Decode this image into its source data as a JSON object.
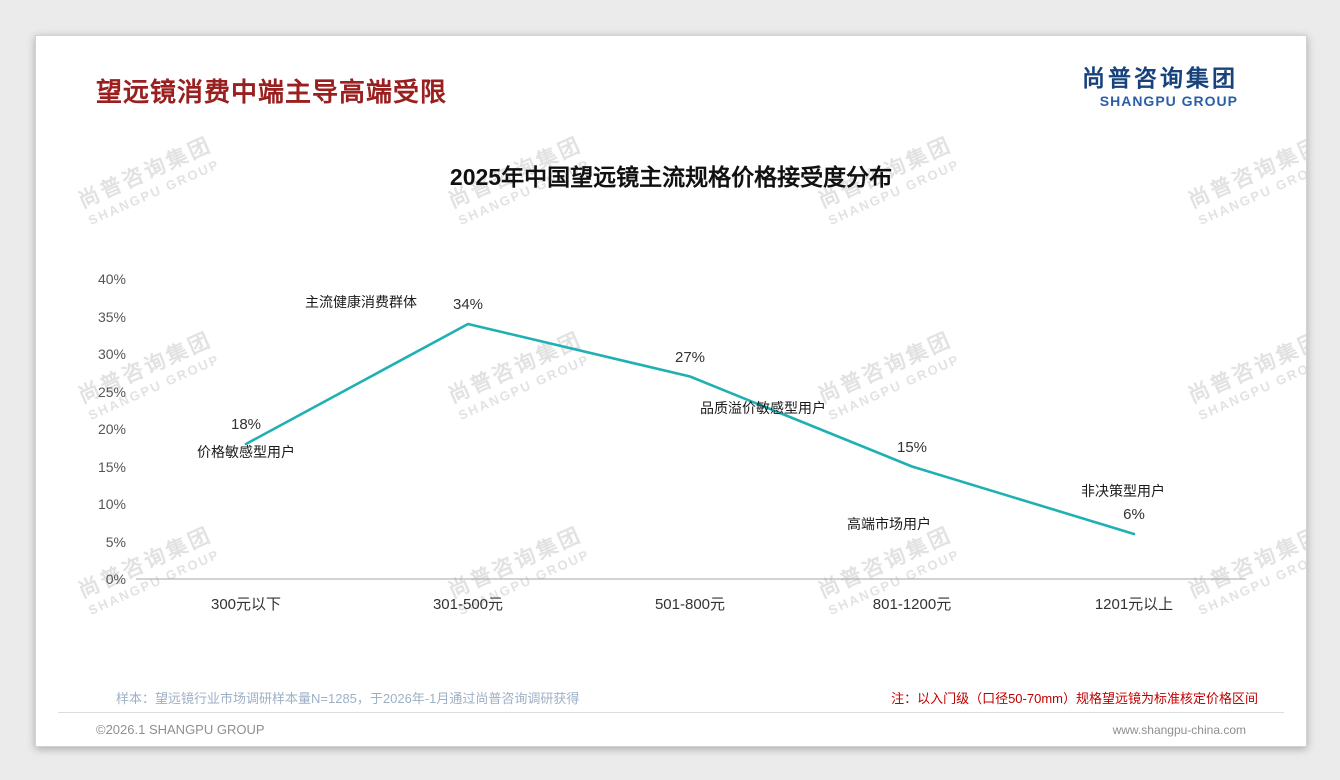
{
  "page": {
    "title": "望远镜消费中端主导高端受限",
    "logo": {
      "cn": "尚普咨询集团",
      "en": "SHANGPU GROUP"
    },
    "watermark": {
      "line1": "尚普咨询集团",
      "line2": "SHANGPU GROUP"
    },
    "footnote_left": "样本：望远镜行业市场调研样本量N=1285，于2026年-1月通过尚普咨询调研获得",
    "footnote_right": "注：以入门级（口径50-70mm）规格望远镜为标准核定价格区间",
    "footer_left": "©2026.1 SHANGPU GROUP",
    "footer_right": "www.shangpu-china.com"
  },
  "colors": {
    "title_red": "#9a1f1f",
    "logo_blue": "#17427c",
    "note_red": "#c00000",
    "line_teal": "#1fb0b4",
    "footnote_gray_blue": "#9eb0c6"
  },
  "chart_data": {
    "type": "line",
    "title": "2025年中国望远镜主流规格价格接受度分布",
    "categories": [
      "300元以下",
      "301-500元",
      "501-800元",
      "801-1200元",
      "1201元以上"
    ],
    "values": [
      18,
      34,
      27,
      15,
      6
    ],
    "value_labels": [
      "18%",
      "34%",
      "27%",
      "15%",
      "6%"
    ],
    "annotations": [
      "价格敏感型用户",
      "主流健康消费群体",
      "品质溢价敏感型用户",
      "高端市场用户",
      "非决策型用户"
    ],
    "xlabel": "",
    "ylabel": "",
    "ylim": [
      0,
      40
    ],
    "ytick_step": 5,
    "ytick_labels": [
      "0%",
      "5%",
      "10%",
      "15%",
      "20%",
      "25%",
      "30%",
      "35%",
      "40%"
    ],
    "line_color": "#1fb0b4",
    "grid": false,
    "legend": null
  }
}
